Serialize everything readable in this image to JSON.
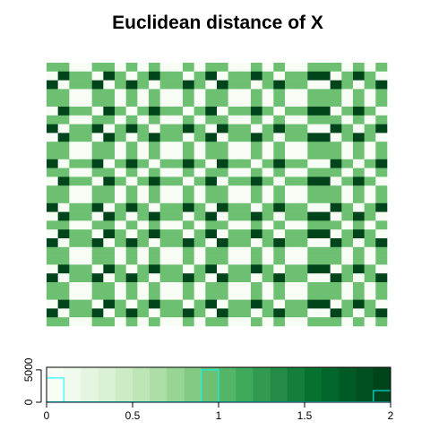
{
  "chart_data": {
    "type": "heatmap",
    "title": "Euclidean distance of X",
    "matrix": [
      [
        1,
        1,
        0,
        0,
        1,
        1,
        0,
        1,
        0,
        1,
        0,
        0,
        1,
        0,
        1,
        1,
        0,
        0,
        1,
        0,
        1,
        0,
        0,
        1,
        1,
        1,
        0,
        1,
        0,
        1
      ],
      [
        0,
        2,
        1,
        1,
        0,
        2,
        1,
        0,
        1,
        2,
        1,
        1,
        0,
        1,
        2,
        0,
        1,
        1,
        2,
        1,
        0,
        1,
        1,
        2,
        2,
        0,
        1,
        2,
        1,
        0
      ],
      [
        2,
        0,
        1,
        1,
        2,
        0,
        1,
        2,
        1,
        0,
        1,
        1,
        2,
        1,
        0,
        2,
        1,
        1,
        0,
        1,
        2,
        1,
        1,
        0,
        0,
        2,
        1,
        0,
        1,
        2
      ],
      [
        1,
        1,
        0,
        0,
        1,
        1,
        0,
        1,
        0,
        1,
        0,
        0,
        1,
        0,
        1,
        1,
        0,
        0,
        1,
        0,
        1,
        0,
        0,
        1,
        1,
        1,
        0,
        1,
        0,
        1
      ],
      [
        1,
        1,
        0,
        0,
        1,
        1,
        0,
        1,
        0,
        1,
        0,
        0,
        1,
        0,
        1,
        1,
        0,
        0,
        1,
        0,
        1,
        0,
        0,
        1,
        1,
        1,
        0,
        1,
        0,
        1
      ],
      [
        0,
        2,
        1,
        1,
        0,
        2,
        1,
        0,
        1,
        2,
        1,
        1,
        0,
        1,
        2,
        0,
        1,
        1,
        2,
        1,
        0,
        1,
        1,
        2,
        2,
        0,
        1,
        2,
        1,
        0
      ],
      [
        1,
        1,
        0,
        0,
        1,
        1,
        0,
        1,
        0,
        1,
        0,
        0,
        1,
        0,
        1,
        1,
        0,
        0,
        1,
        0,
        1,
        0,
        0,
        1,
        1,
        1,
        0,
        1,
        0,
        1
      ],
      [
        2,
        0,
        1,
        1,
        2,
        0,
        1,
        2,
        1,
        0,
        1,
        1,
        2,
        1,
        0,
        2,
        1,
        1,
        0,
        1,
        2,
        1,
        1,
        0,
        0,
        2,
        1,
        0,
        1,
        2
      ],
      [
        0,
        2,
        1,
        1,
        0,
        2,
        1,
        0,
        1,
        2,
        1,
        1,
        0,
        1,
        2,
        0,
        1,
        1,
        2,
        1,
        0,
        1,
        1,
        2,
        2,
        0,
        1,
        2,
        1,
        0
      ],
      [
        1,
        1,
        0,
        0,
        1,
        1,
        0,
        1,
        0,
        1,
        0,
        0,
        1,
        0,
        1,
        1,
        0,
        0,
        1,
        0,
        1,
        0,
        0,
        1,
        1,
        1,
        0,
        1,
        0,
        1
      ],
      [
        1,
        1,
        0,
        0,
        1,
        1,
        0,
        1,
        0,
        1,
        0,
        0,
        1,
        0,
        1,
        1,
        0,
        0,
        1,
        0,
        1,
        0,
        0,
        1,
        1,
        1,
        0,
        1,
        0,
        1
      ],
      [
        2,
        0,
        1,
        1,
        2,
        0,
        1,
        2,
        1,
        0,
        1,
        1,
        2,
        1,
        0,
        2,
        1,
        1,
        0,
        1,
        2,
        1,
        1,
        0,
        0,
        2,
        1,
        0,
        1,
        2
      ],
      [
        1,
        1,
        0,
        0,
        1,
        1,
        0,
        1,
        0,
        1,
        0,
        0,
        1,
        0,
        1,
        1,
        0,
        0,
        1,
        0,
        1,
        0,
        0,
        1,
        1,
        1,
        0,
        1,
        0,
        1
      ],
      [
        0,
        2,
        1,
        1,
        0,
        2,
        1,
        0,
        1,
        2,
        1,
        1,
        0,
        1,
        2,
        0,
        1,
        1,
        2,
        1,
        0,
        1,
        1,
        2,
        2,
        0,
        1,
        2,
        1,
        0
      ],
      [
        1,
        1,
        0,
        0,
        1,
        1,
        0,
        1,
        0,
        1,
        0,
        0,
        1,
        0,
        1,
        1,
        0,
        0,
        1,
        0,
        1,
        0,
        0,
        1,
        1,
        1,
        0,
        1,
        0,
        1
      ],
      [
        1,
        1,
        0,
        0,
        1,
        1,
        0,
        1,
        0,
        1,
        0,
        0,
        1,
        0,
        1,
        1,
        0,
        0,
        1,
        0,
        1,
        0,
        0,
        1,
        1,
        1,
        0,
        1,
        0,
        1
      ],
      [
        2,
        0,
        1,
        1,
        2,
        0,
        1,
        2,
        1,
        0,
        1,
        1,
        2,
        1,
        0,
        2,
        1,
        1,
        0,
        1,
        2,
        1,
        1,
        0,
        0,
        2,
        1,
        0,
        1,
        2
      ],
      [
        0,
        2,
        1,
        1,
        0,
        2,
        1,
        0,
        1,
        2,
        1,
        1,
        0,
        1,
        2,
        0,
        1,
        1,
        2,
        1,
        0,
        1,
        1,
        2,
        2,
        0,
        1,
        2,
        1,
        0
      ],
      [
        1,
        1,
        0,
        0,
        1,
        1,
        0,
        1,
        0,
        1,
        0,
        0,
        1,
        0,
        1,
        1,
        0,
        0,
        1,
        0,
        1,
        0,
        0,
        1,
        1,
        1,
        0,
        1,
        0,
        1
      ],
      [
        0,
        2,
        1,
        1,
        0,
        2,
        1,
        0,
        1,
        2,
        1,
        1,
        0,
        1,
        2,
        0,
        1,
        1,
        2,
        1,
        0,
        1,
        1,
        2,
        2,
        0,
        1,
        2,
        1,
        0
      ],
      [
        2,
        0,
        1,
        1,
        2,
        0,
        1,
        2,
        1,
        0,
        1,
        1,
        2,
        1,
        0,
        2,
        1,
        1,
        0,
        1,
        2,
        1,
        1,
        0,
        0,
        2,
        1,
        0,
        1,
        2
      ],
      [
        1,
        1,
        0,
        0,
        1,
        1,
        0,
        1,
        0,
        1,
        0,
        0,
        1,
        0,
        1,
        1,
        0,
        0,
        1,
        0,
        1,
        0,
        0,
        1,
        1,
        1,
        0,
        1,
        0,
        1
      ],
      [
        1,
        1,
        0,
        0,
        1,
        1,
        0,
        1,
        0,
        1,
        0,
        0,
        1,
        0,
        1,
        1,
        0,
        0,
        1,
        0,
        1,
        0,
        0,
        1,
        1,
        1,
        0,
        1,
        0,
        1
      ],
      [
        0,
        2,
        1,
        1,
        0,
        2,
        1,
        0,
        1,
        2,
        1,
        1,
        0,
        1,
        2,
        0,
        1,
        1,
        2,
        1,
        0,
        1,
        1,
        2,
        2,
        0,
        1,
        2,
        1,
        0
      ],
      [
        2,
        0,
        1,
        1,
        2,
        0,
        1,
        2,
        1,
        0,
        1,
        1,
        2,
        1,
        0,
        2,
        1,
        1,
        0,
        1,
        2,
        1,
        1,
        0,
        0,
        2,
        1,
        0,
        1,
        2
      ],
      [
        1,
        1,
        0,
        0,
        1,
        1,
        0,
        1,
        0,
        1,
        0,
        0,
        1,
        0,
        1,
        1,
        0,
        0,
        1,
        0,
        1,
        0,
        0,
        1,
        1,
        1,
        0,
        1,
        0,
        1
      ],
      [
        1,
        1,
        0,
        0,
        1,
        1,
        0,
        1,
        0,
        1,
        0,
        0,
        1,
        0,
        1,
        1,
        0,
        0,
        1,
        0,
        1,
        0,
        0,
        1,
        1,
        1,
        0,
        1,
        0,
        1
      ],
      [
        0,
        2,
        1,
        1,
        0,
        2,
        1,
        0,
        1,
        2,
        1,
        1,
        0,
        1,
        2,
        0,
        1,
        1,
        2,
        1,
        0,
        1,
        1,
        2,
        2,
        0,
        1,
        2,
        1,
        0
      ],
      [
        2,
        0,
        1,
        1,
        2,
        0,
        1,
        2,
        1,
        0,
        1,
        1,
        2,
        1,
        0,
        2,
        1,
        1,
        0,
        1,
        2,
        1,
        1,
        0,
        0,
        2,
        1,
        0,
        1,
        2
      ],
      [
        1,
        1,
        0,
        0,
        1,
        1,
        0,
        1,
        0,
        1,
        0,
        0,
        1,
        0,
        1,
        1,
        0,
        0,
        1,
        0,
        1,
        0,
        0,
        1,
        1,
        1,
        0,
        1,
        0,
        1
      ]
    ],
    "colors": [
      "#f7fcf5",
      "#eff9ec",
      "#e6f5e1",
      "#dbf1d5",
      "#cdebc5",
      "#bde5b6",
      "#abdda5",
      "#98d594",
      "#83cb82",
      "#6dc072",
      "#55b567",
      "#40aa5c",
      "#319a50",
      "#238b45",
      "#147e3a",
      "#067230",
      "#00662a",
      "#005a24",
      "#004f20",
      "#00441b"
    ],
    "key": {
      "bins": [
        0,
        0.1,
        0.2,
        0.3,
        0.4,
        0.5,
        0.6,
        0.7,
        0.8,
        0.9,
        1,
        1.1,
        1.2,
        1.3,
        1.4,
        1.5,
        1.6,
        1.7,
        1.8,
        1.9,
        2
      ],
      "counts": [
        3750,
        0,
        0,
        0,
        0,
        0,
        0,
        0,
        0,
        5000,
        0,
        0,
        0,
        0,
        0,
        0,
        0,
        0,
        0,
        1800
      ],
      "hist_color": "#00ffff",
      "xlim": [
        0,
        2
      ],
      "xticks": [
        0,
        0.5,
        1,
        1.5,
        2
      ],
      "ylim": [
        0,
        5400
      ],
      "yticks": [
        0,
        5000
      ]
    }
  }
}
